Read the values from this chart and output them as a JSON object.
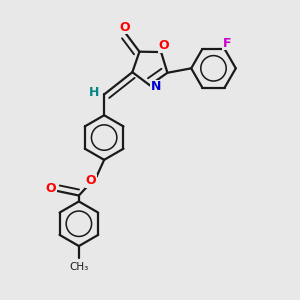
{
  "background_color": "#e8e8e8",
  "bond_color": "#1a1a1a",
  "bond_width": 1.6,
  "dbo": 0.09,
  "atom_colors": {
    "O": "#ff0000",
    "N": "#0000cc",
    "F": "#cc00cc",
    "H": "#008888",
    "C": "#1a1a1a"
  },
  "figsize": [
    3.0,
    3.0
  ],
  "dpi": 100
}
